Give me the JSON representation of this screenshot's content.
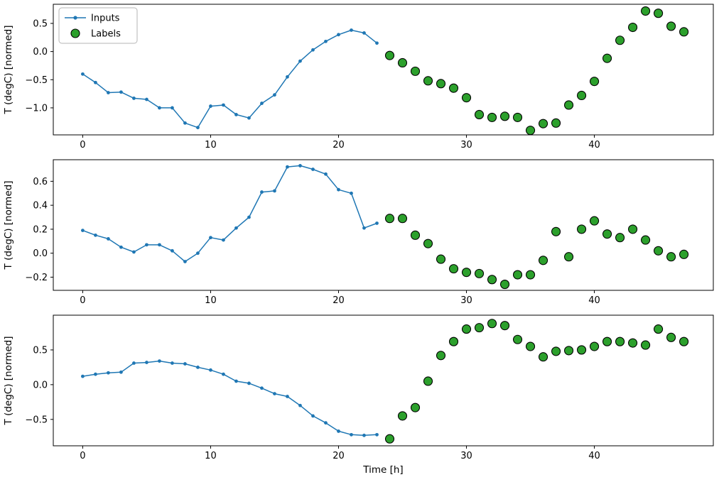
{
  "figure": {
    "xlabel": "Time [h]",
    "ylabel": "T (degC) [normed]",
    "legend": {
      "inputs": "Inputs",
      "labels": "Labels"
    },
    "colors": {
      "inputs": "#1f77b4",
      "labels_fill": "#2ca02c",
      "labels_edge": "#000000",
      "spine": "#000000",
      "legend_border": "#b5b5b5"
    }
  },
  "chart_data": [
    {
      "type": "line",
      "ylabel": "T (degC) [normed]",
      "xlabel": "",
      "legend": true,
      "xlim": [
        -2.3,
        49.3
      ],
      "ylim": [
        -1.48,
        0.84
      ],
      "xticks": [
        0,
        10,
        20,
        30,
        40
      ],
      "xtick_labels": [
        "0",
        "10",
        "20",
        "30",
        "40"
      ],
      "yticks": [
        0.5,
        0.0,
        -0.5,
        -1.0
      ],
      "ytick_labels": [
        "0.5",
        "0.0",
        "−0.5",
        "−1.0"
      ],
      "series": [
        {
          "name": "Inputs",
          "style": "line+marker",
          "x": [
            0,
            1,
            2,
            3,
            4,
            5,
            6,
            7,
            8,
            9,
            10,
            11,
            12,
            13,
            14,
            15,
            16,
            17,
            18,
            19,
            20,
            21,
            22,
            23
          ],
          "y": [
            -0.4,
            -0.55,
            -0.73,
            -0.72,
            -0.83,
            -0.85,
            -1.0,
            -1.0,
            -1.27,
            -1.35,
            -0.97,
            -0.95,
            -1.12,
            -1.18,
            -0.92,
            -0.77,
            -0.45,
            -0.17,
            0.03,
            0.18,
            0.3,
            0.38,
            0.33,
            0.15
          ]
        },
        {
          "name": "Labels",
          "style": "scatter",
          "x": [
            24,
            25,
            26,
            27,
            28,
            29,
            30,
            31,
            32,
            33,
            34,
            35,
            36,
            37,
            38,
            39,
            40,
            41,
            42,
            43,
            44,
            45,
            46,
            47
          ],
          "y": [
            -0.07,
            -0.2,
            -0.35,
            -0.52,
            -0.57,
            -0.65,
            -0.82,
            -1.12,
            -1.17,
            -1.15,
            -1.17,
            -1.4,
            -1.28,
            -1.27,
            -0.95,
            -0.78,
            -0.53,
            -0.12,
            0.2,
            0.43,
            0.72,
            0.68,
            0.45,
            0.35
          ]
        }
      ]
    },
    {
      "type": "line",
      "ylabel": "T (degC) [normed]",
      "xlabel": "",
      "legend": false,
      "xlim": [
        -2.3,
        49.3
      ],
      "ylim": [
        -0.31,
        0.78
      ],
      "xticks": [
        0,
        10,
        20,
        30,
        40
      ],
      "xtick_labels": [
        "0",
        "10",
        "20",
        "30",
        "40"
      ],
      "yticks": [
        0.6,
        0.4,
        0.2,
        0.0,
        -0.2
      ],
      "ytick_labels": [
        "0.6",
        "0.4",
        "0.2",
        "0.0",
        "−0.2"
      ],
      "series": [
        {
          "name": "Inputs",
          "style": "line+marker",
          "x": [
            0,
            1,
            2,
            3,
            4,
            5,
            6,
            7,
            8,
            9,
            10,
            11,
            12,
            13,
            14,
            15,
            16,
            17,
            18,
            19,
            20,
            21,
            22,
            23
          ],
          "y": [
            0.19,
            0.15,
            0.12,
            0.05,
            0.01,
            0.07,
            0.07,
            0.02,
            -0.07,
            0.0,
            0.13,
            0.11,
            0.21,
            0.3,
            0.51,
            0.52,
            0.72,
            0.73,
            0.7,
            0.66,
            0.53,
            0.5,
            0.21,
            0.25
          ]
        },
        {
          "name": "Labels",
          "style": "scatter",
          "x": [
            24,
            25,
            26,
            27,
            28,
            29,
            30,
            31,
            32,
            33,
            34,
            35,
            36,
            37,
            38,
            39,
            40,
            41,
            42,
            43,
            44,
            45,
            46,
            47
          ],
          "y": [
            0.29,
            0.29,
            0.15,
            0.08,
            -0.05,
            -0.13,
            -0.16,
            -0.17,
            -0.22,
            -0.26,
            -0.18,
            -0.18,
            -0.06,
            0.18,
            -0.03,
            0.2,
            0.27,
            0.16,
            0.13,
            0.2,
            0.11,
            0.02,
            -0.03,
            -0.01
          ]
        }
      ]
    },
    {
      "type": "line",
      "ylabel": "T (degC) [normed]",
      "xlabel": "Time [h]",
      "legend": false,
      "xlim": [
        -2.3,
        49.3
      ],
      "ylim": [
        -0.88,
        1.0
      ],
      "xticks": [
        0,
        10,
        20,
        30,
        40
      ],
      "xtick_labels": [
        "0",
        "10",
        "20",
        "30",
        "40"
      ],
      "yticks": [
        0.5,
        0.0,
        -0.5
      ],
      "ytick_labels": [
        "0.5",
        "0.0",
        "−0.5"
      ],
      "series": [
        {
          "name": "Inputs",
          "style": "line+marker",
          "x": [
            0,
            1,
            2,
            3,
            4,
            5,
            6,
            7,
            8,
            9,
            10,
            11,
            12,
            13,
            14,
            15,
            16,
            17,
            18,
            19,
            20,
            21,
            22,
            23
          ],
          "y": [
            0.12,
            0.15,
            0.17,
            0.18,
            0.31,
            0.32,
            0.34,
            0.31,
            0.3,
            0.25,
            0.21,
            0.15,
            0.05,
            0.02,
            -0.05,
            -0.13,
            -0.17,
            -0.3,
            -0.45,
            -0.55,
            -0.67,
            -0.72,
            -0.73,
            -0.72
          ]
        },
        {
          "name": "Labels",
          "style": "scatter",
          "x": [
            24,
            25,
            26,
            27,
            28,
            29,
            30,
            31,
            32,
            33,
            34,
            35,
            36,
            37,
            38,
            39,
            40,
            41,
            42,
            43,
            44,
            45,
            46,
            47
          ],
          "y": [
            -0.78,
            -0.45,
            -0.33,
            0.05,
            0.42,
            0.62,
            0.8,
            0.82,
            0.88,
            0.85,
            0.65,
            0.55,
            0.4,
            0.48,
            0.49,
            0.5,
            0.55,
            0.62,
            0.62,
            0.6,
            0.57,
            0.8,
            0.68,
            0.62
          ]
        }
      ]
    }
  ]
}
